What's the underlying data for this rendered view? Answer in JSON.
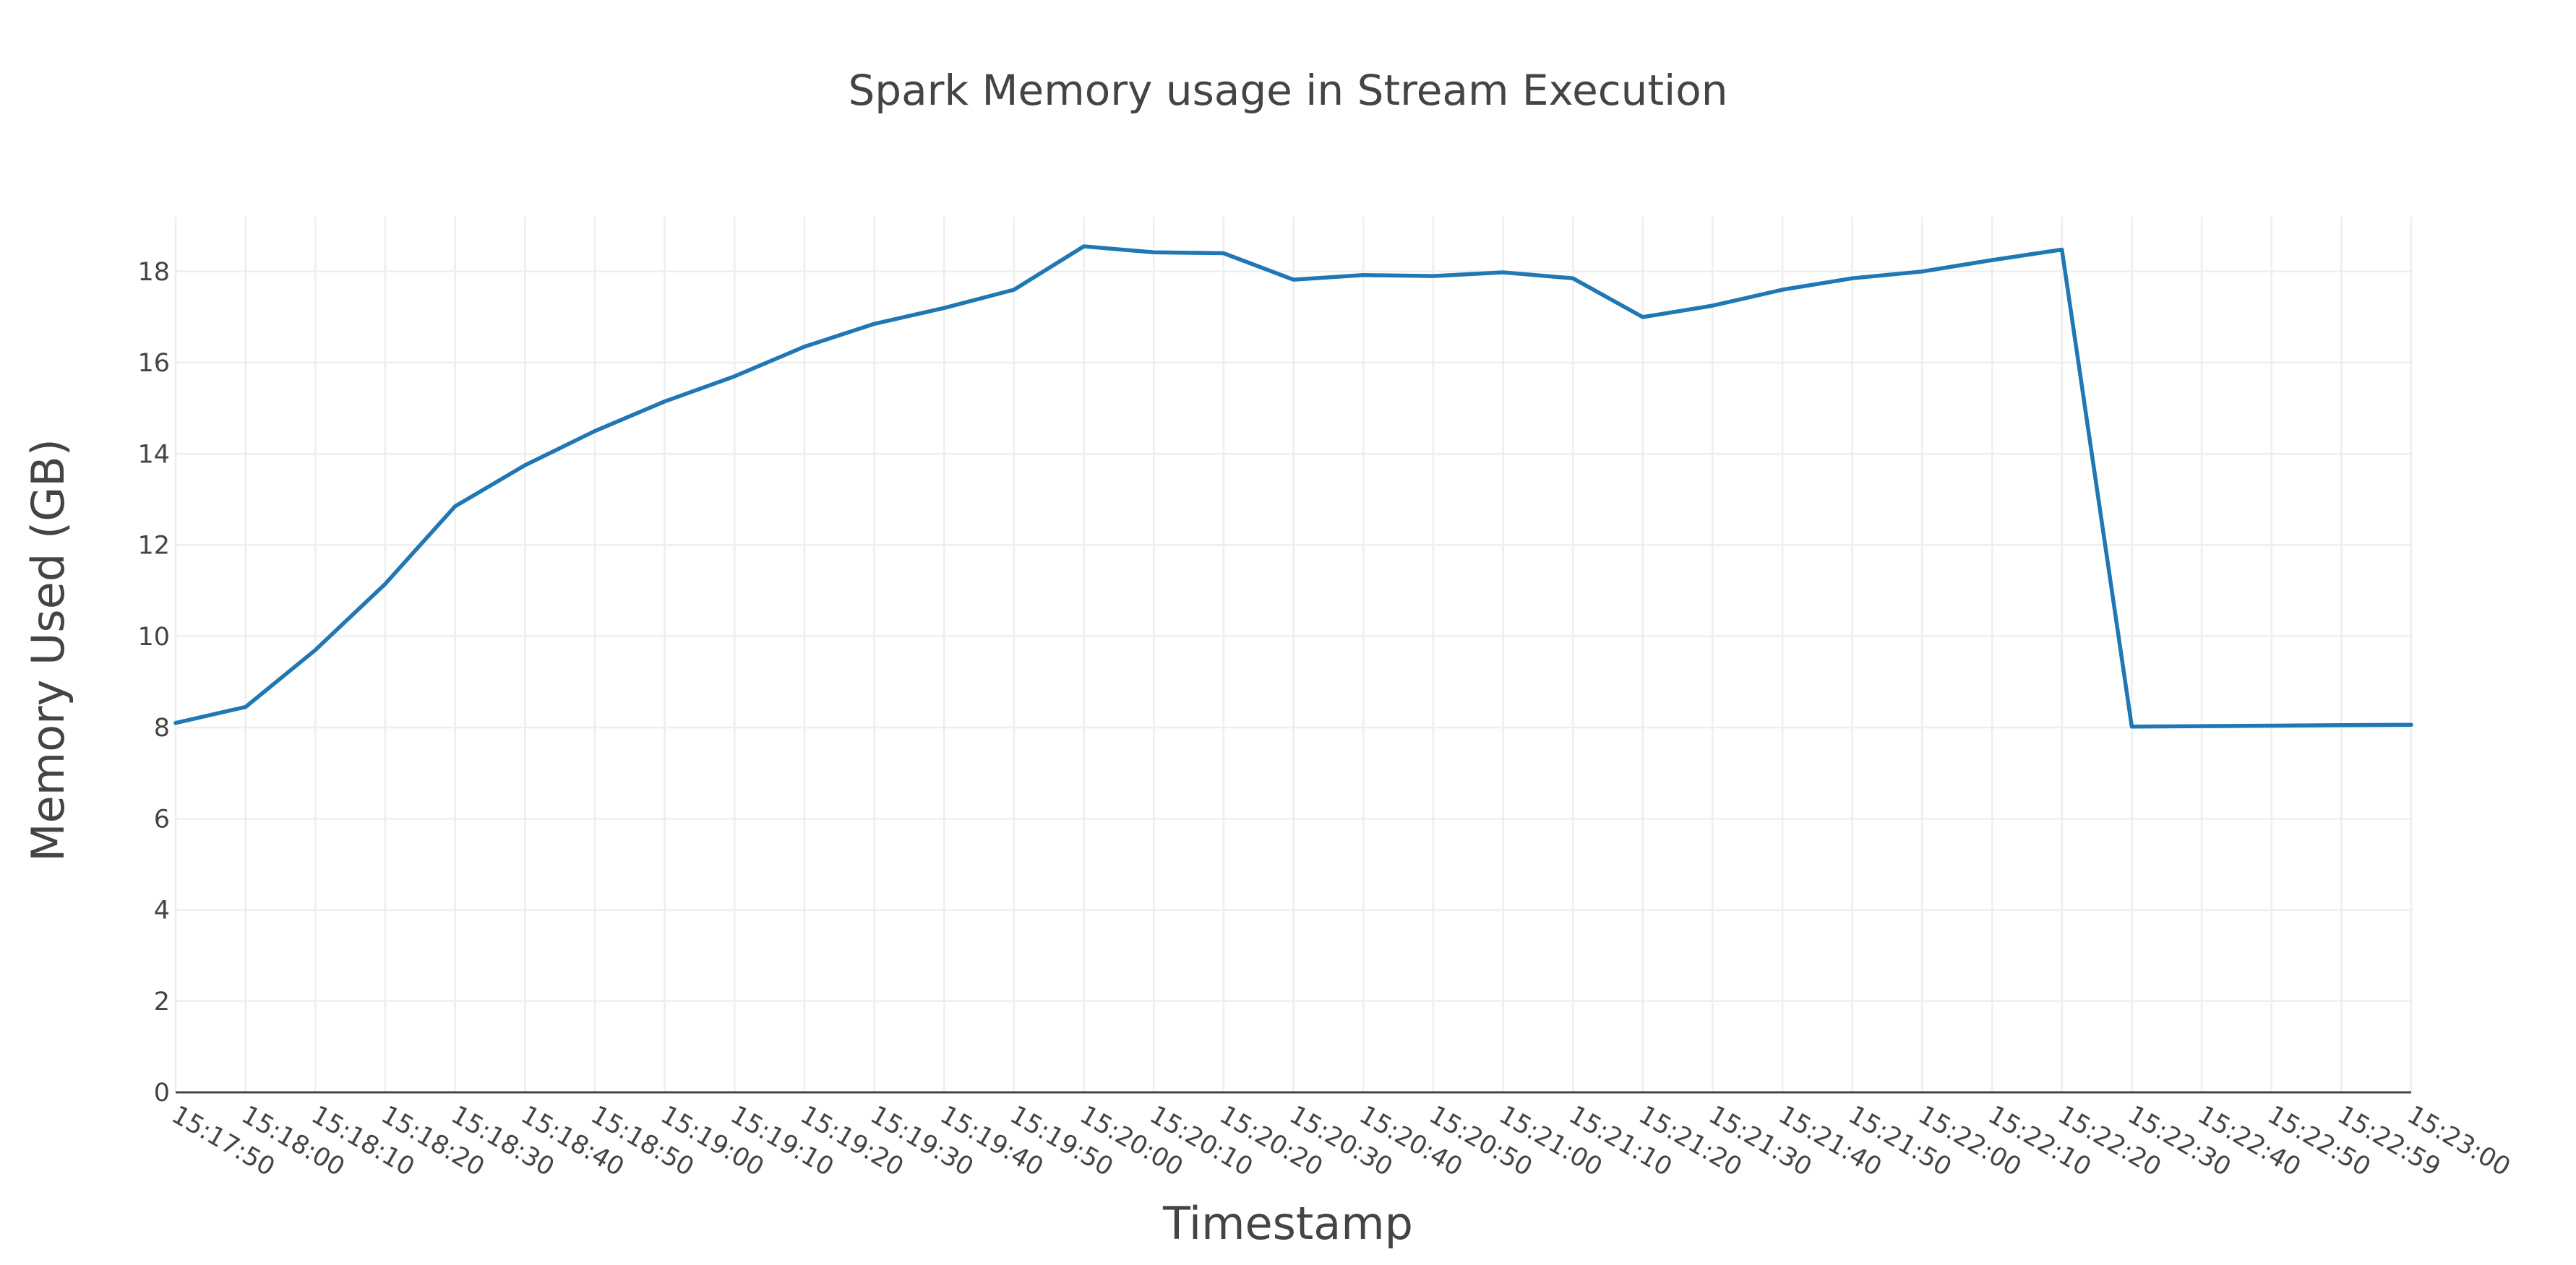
{
  "chart_data": {
    "type": "line",
    "title": "Spark Memory usage in Stream Execution",
    "xlabel": "Timestamp",
    "ylabel": "Memory Used (GB)",
    "ylim": [
      0,
      19.2
    ],
    "yticks": [
      0,
      2,
      4,
      6,
      8,
      10,
      12,
      14,
      16,
      18
    ],
    "grid": true,
    "colors": {
      "line": "#1f77b4",
      "grid": "#eeeeee",
      "axis": "#444444"
    },
    "x": [
      "15:17:50",
      "15:18:00",
      "15:18:10",
      "15:18:20",
      "15:18:30",
      "15:18:40",
      "15:18:50",
      "15:19:00",
      "15:19:10",
      "15:19:20",
      "15:19:30",
      "15:19:40",
      "15:19:50",
      "15:20:00",
      "15:20:10",
      "15:20:20",
      "15:20:30",
      "15:20:40",
      "15:20:50",
      "15:21:00",
      "15:21:10",
      "15:21:20",
      "15:21:30",
      "15:21:40",
      "15:21:50",
      "15:22:00",
      "15:22:10",
      "15:22:20",
      "15:22:30",
      "15:22:40",
      "15:22:50",
      "15:22:59",
      "15:23:00"
    ],
    "series": [
      {
        "values": [
          8.1,
          8.45,
          9.7,
          11.15,
          12.85,
          13.75,
          14.5,
          15.15,
          15.7,
          16.35,
          16.85,
          17.2,
          17.6,
          18.55,
          18.42,
          18.4,
          17.82,
          17.92,
          17.9,
          17.98,
          17.85,
          17.0,
          17.25,
          17.6,
          17.85,
          18.0,
          18.25,
          18.48,
          8.02,
          8.03,
          8.04,
          8.05,
          8.06
        ]
      }
    ]
  }
}
